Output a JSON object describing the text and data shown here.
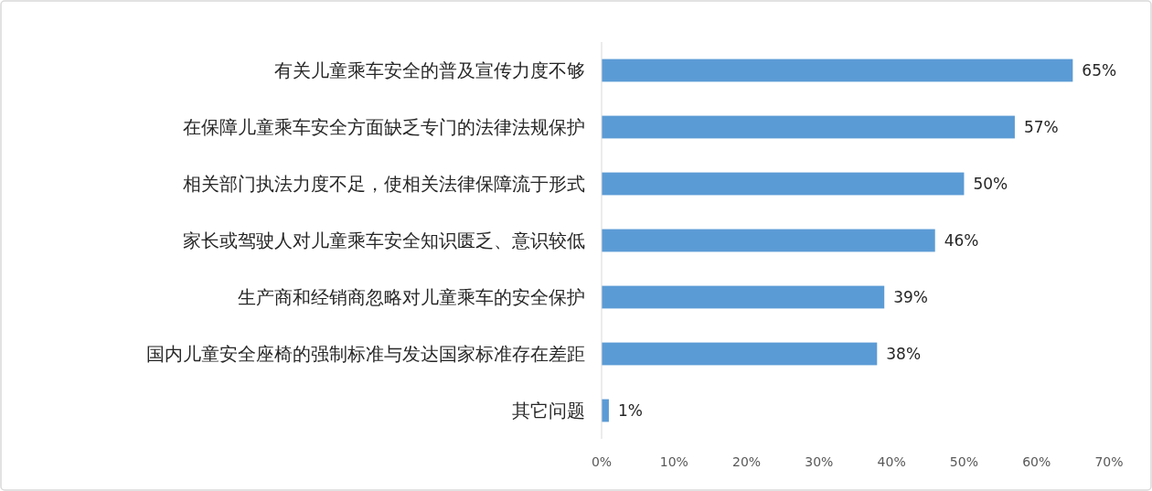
{
  "chart_data": {
    "type": "bar",
    "orientation": "horizontal",
    "categories": [
      "有关儿童乘车安全的普及宣传力度不够",
      "在保障儿童乘车安全方面缺乏专门的法律法规保护",
      "相关部门执法力度不足，使相关法律保障流于形式",
      "家长或驾驶人对儿童乘车安全知识匮乏、意识较低",
      "生产商和经销商忽略对儿童乘车的安全保护",
      "国内儿童安全座椅的强制标准与发达国家标准存在差距",
      "其它问题"
    ],
    "values": [
      65,
      57,
      50,
      46,
      39,
      38,
      1
    ],
    "value_labels": [
      "65%",
      "57%",
      "50%",
      "46%",
      "39%",
      "38%",
      "1%"
    ],
    "color": "#5b9bd5",
    "xlim": [
      0,
      70
    ],
    "xticks": [
      {
        "value": 0,
        "label": "0%"
      },
      {
        "value": 10,
        "label": "10%"
      },
      {
        "value": 20,
        "label": "20%"
      },
      {
        "value": 30,
        "label": "30%"
      },
      {
        "value": 40,
        "label": "40%"
      },
      {
        "value": 50,
        "label": "50%"
      },
      {
        "value": 60,
        "label": "60%"
      },
      {
        "value": 70,
        "label": "70%"
      }
    ],
    "grid": false
  }
}
